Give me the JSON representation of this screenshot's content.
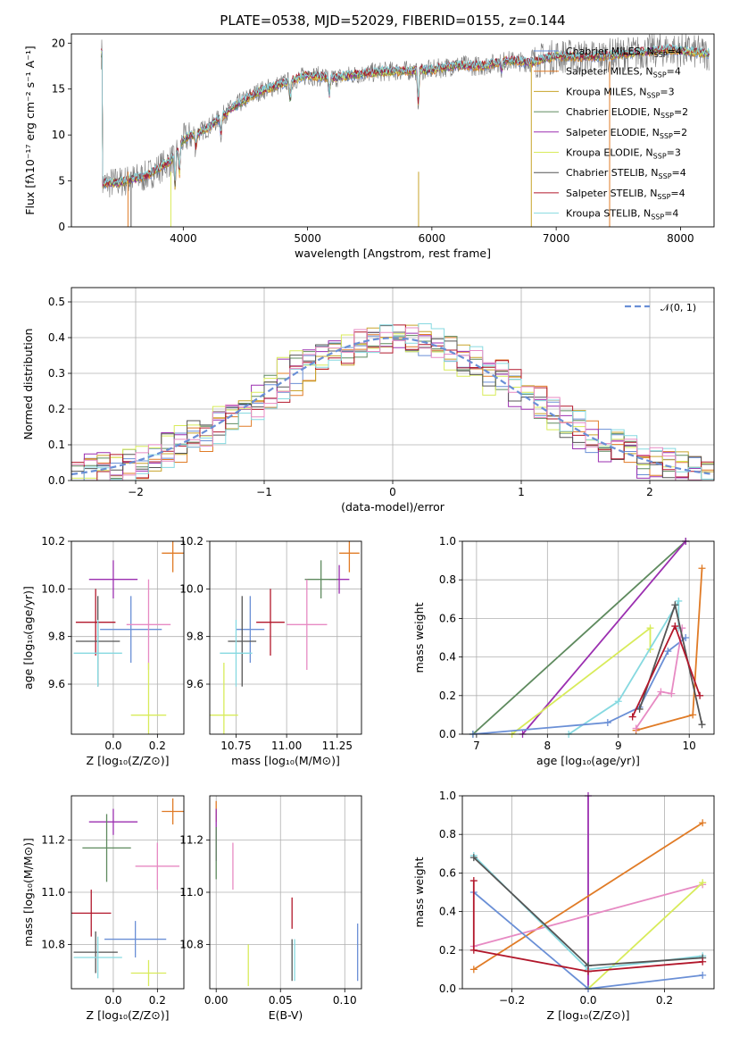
{
  "palette": {
    "chabrier_miles": "#6a8fd6",
    "salpeter_miles": "#e07b26",
    "kroupa_miles": "#c8a42a",
    "chabrier_elodie": "#5e8a5e",
    "salpeter_elodie": "#9b2fb0",
    "kroupa_elodie": "#d8eb5a",
    "chabrier_stelib": "#555555",
    "salpeter_stelib": "#b2172b",
    "kroupa_stelib": "#86d9e0",
    "pink": "#e78ac3",
    "gaussian": "#6a8fd6"
  },
  "chart_data": [
    {
      "type": "line",
      "title": "PLATE=0538, MJD=52029, FIBERID=0155, z=0.144",
      "xlabel": "wavelength [Angstrom, rest frame]",
      "ylabel": "Flux [fλ10⁻¹⁷ erg cm⁻² s⁻¹ A⁻¹]",
      "xlim": [
        3100,
        8270
      ],
      "ylim": [
        0,
        21
      ],
      "xticks": [
        "4000",
        "5000",
        "6000",
        "7000",
        "8000"
      ],
      "yticks": [
        "0",
        "5",
        "10",
        "15",
        "20"
      ],
      "spectrum_anchors": [
        [
          3350,
          4.7
        ],
        [
          3500,
          4.9
        ],
        [
          3700,
          5.5
        ],
        [
          3900,
          7.2
        ],
        [
          4000,
          9.5
        ],
        [
          4200,
          10.8
        ],
        [
          4400,
          13.0
        ],
        [
          4600,
          14.7
        ],
        [
          4800,
          15.6
        ],
        [
          5000,
          16.5
        ],
        [
          5200,
          16.2
        ],
        [
          5400,
          16.6
        ],
        [
          5600,
          16.9
        ],
        [
          5800,
          17.0
        ],
        [
          6000,
          17.1
        ],
        [
          6200,
          17.6
        ],
        [
          6400,
          17.5
        ],
        [
          6600,
          18.1
        ],
        [
          6800,
          17.9
        ],
        [
          7000,
          18.6
        ],
        [
          7300,
          18.5
        ],
        [
          7600,
          18.9
        ],
        [
          7900,
          19.3
        ],
        [
          8200,
          18.9
        ]
      ],
      "legend": [
        {
          "label": "Chabrier MILES, N",
          "sub": "SSP",
          "eq": "=4",
          "color": "#6a8fd6"
        },
        {
          "label": "Salpeter MILES, N",
          "sub": "SSP",
          "eq": "=4",
          "color": "#e07b26"
        },
        {
          "label": "Kroupa MILES, N",
          "sub": "SSP",
          "eq": "=3",
          "color": "#c8a42a"
        },
        {
          "label": "Chabrier ELODIE, N",
          "sub": "SSP",
          "eq": "=2",
          "color": "#5e8a5e"
        },
        {
          "label": "Salpeter ELODIE, N",
          "sub": "SSP",
          "eq": "=2",
          "color": "#9b2fb0"
        },
        {
          "label": "Kroupa ELODIE, N",
          "sub": "SSP",
          "eq": "=3",
          "color": "#d8eb5a"
        },
        {
          "label": "Chabrier STELIB, N",
          "sub": "SSP",
          "eq": "=4",
          "color": "#555555"
        },
        {
          "label": "Salpeter STELIB, N",
          "sub": "SSP",
          "eq": "=4",
          "color": "#b2172b"
        },
        {
          "label": "Kroupa STELIB, N",
          "sub": "SSP",
          "eq": "=4",
          "color": "#86d9e0"
        }
      ]
    },
    {
      "type": "histogram",
      "xlabel": "(data-model)/error",
      "ylabel": "Normed distribution",
      "xlim": [
        -2.5,
        2.5
      ],
      "ylim": [
        0,
        0.54
      ],
      "xticks": [
        "−2",
        "−1",
        "0",
        "1",
        "2"
      ],
      "yticks": [
        "0.0",
        "0.1",
        "0.2",
        "0.3",
        "0.4",
        "0.5"
      ],
      "bin_width": 0.1,
      "gaussian_label": "𝒩(0, 1)",
      "series_colors": [
        "#6a8fd6",
        "#e07b26",
        "#c8a42a",
        "#5e8a5e",
        "#9b2fb0",
        "#d8eb5a",
        "#555555",
        "#b2172b",
        "#86d9e0",
        "#e78ac3"
      ]
    },
    {
      "type": "errorbar",
      "xlabel": "Z [log₁₀(Z/Z⊙)]",
      "ylabel": "age  [log₁₀(age/yr)]",
      "xlim": [
        -0.19,
        0.32
      ],
      "ylim": [
        9.39,
        10.2
      ],
      "xticks": [
        "0.0",
        "0.2"
      ],
      "yticks": [
        "9.6",
        "9.8",
        "10.0",
        "10.2"
      ],
      "points": [
        {
          "x": 0.27,
          "y": 10.15,
          "ex": 0.05,
          "ey": 0.08,
          "color": "#e07b26"
        },
        {
          "x": 0.0,
          "y": 10.04,
          "ex": 0.11,
          "ey": 0.08,
          "color": "#9b2fb0"
        },
        {
          "x": 0.08,
          "y": 9.83,
          "ex": 0.14,
          "ey": 0.14,
          "color": "#6a8fd6"
        },
        {
          "x": -0.08,
          "y": 9.86,
          "ex": 0.09,
          "ey": 0.14,
          "color": "#b2172b"
        },
        {
          "x": -0.07,
          "y": 9.78,
          "ex": 0.1,
          "ey": 0.19,
          "color": "#555555"
        },
        {
          "x": -0.07,
          "y": 9.73,
          "ex": 0.11,
          "ey": 0.14,
          "color": "#86d9e0"
        },
        {
          "x": 0.16,
          "y": 9.85,
          "ex": 0.1,
          "ey": 0.19,
          "color": "#e78ac3"
        },
        {
          "x": 0.16,
          "y": 9.47,
          "ex": 0.08,
          "ey": 0.22,
          "color": "#d8eb5a"
        }
      ]
    },
    {
      "type": "errorbar",
      "xlabel": "mass [log₁₀(M/M⊙)]",
      "ylabel": "",
      "xlim": [
        10.62,
        11.37
      ],
      "ylim": [
        9.39,
        10.2
      ],
      "xticks": [
        "10.75",
        "11.00",
        "11.25"
      ],
      "yticks": [
        "9.6",
        "9.8",
        "10.0",
        "10.2"
      ],
      "points": [
        {
          "x": 11.31,
          "y": 10.15,
          "ex": 0.05,
          "ey": 0.08,
          "color": "#e07b26"
        },
        {
          "x": 11.26,
          "y": 10.04,
          "ex": 0.05,
          "ey": 0.06,
          "color": "#9b2fb0"
        },
        {
          "x": 11.17,
          "y": 10.04,
          "ex": 0.08,
          "ey": 0.08,
          "color": "#5e8a5e"
        },
        {
          "x": 11.1,
          "y": 9.85,
          "ex": 0.1,
          "ey": 0.19,
          "color": "#e78ac3"
        },
        {
          "x": 10.92,
          "y": 9.86,
          "ex": 0.07,
          "ey": 0.14,
          "color": "#b2172b"
        },
        {
          "x": 10.82,
          "y": 9.83,
          "ex": 0.07,
          "ey": 0.14,
          "color": "#6a8fd6"
        },
        {
          "x": 10.78,
          "y": 9.78,
          "ex": 0.07,
          "ey": 0.19,
          "color": "#555555"
        },
        {
          "x": 10.75,
          "y": 9.73,
          "ex": 0.08,
          "ey": 0.14,
          "color": "#86d9e0"
        },
        {
          "x": 10.69,
          "y": 9.47,
          "ex": 0.07,
          "ey": 0.22,
          "color": "#d8eb5a"
        }
      ]
    },
    {
      "type": "line",
      "xlabel": "age  [log₁₀(age/yr)]",
      "ylabel": "mass weight",
      "xlim": [
        6.8,
        10.35
      ],
      "ylim": [
        0,
        1
      ],
      "xticks": [
        "7",
        "8",
        "9",
        "10"
      ],
      "yticks": [
        "0.0",
        "0.2",
        "0.4",
        "0.6",
        "0.8",
        "1.0"
      ],
      "series": [
        {
          "color": "#5e8a5e",
          "points": [
            [
              6.95,
              0.0
            ],
            [
              9.95,
              1.0
            ]
          ]
        },
        {
          "color": "#9b2fb0",
          "points": [
            [
              7.65,
              0.0
            ],
            [
              9.95,
              1.0
            ]
          ]
        },
        {
          "color": "#d8eb5a",
          "points": [
            [
              7.5,
              0.0
            ],
            [
              9.45,
              0.55
            ],
            [
              9.45,
              0.44
            ]
          ]
        },
        {
          "color": "#86d9e0",
          "points": [
            [
              8.3,
              0.0
            ],
            [
              9.0,
              0.17
            ],
            [
              9.85,
              0.69
            ],
            [
              9.85,
              0.55
            ]
          ]
        },
        {
          "color": "#6a8fd6",
          "points": [
            [
              6.95,
              0.0
            ],
            [
              8.85,
              0.06
            ],
            [
              9.3,
              0.14
            ],
            [
              9.7,
              0.43
            ],
            [
              9.95,
              0.5
            ]
          ]
        },
        {
          "color": "#e07b26",
          "points": [
            [
              9.25,
              0.02
            ],
            [
              10.05,
              0.1
            ],
            [
              10.18,
              0.86
            ]
          ]
        },
        {
          "color": "#e78ac3",
          "points": [
            [
              9.25,
              0.03
            ],
            [
              9.6,
              0.22
            ],
            [
              9.75,
              0.21
            ],
            [
              9.9,
              0.55
            ]
          ]
        },
        {
          "color": "#555555",
          "points": [
            [
              9.3,
              0.13
            ],
            [
              9.8,
              0.67
            ],
            [
              10.18,
              0.05
            ]
          ]
        },
        {
          "color": "#b2172b",
          "points": [
            [
              9.2,
              0.09
            ],
            [
              9.8,
              0.56
            ],
            [
              10.15,
              0.2
            ]
          ]
        }
      ]
    },
    {
      "type": "errorbar",
      "xlabel": "Z [log₁₀(Z/Z⊙)]",
      "ylabel": "mass [log₁₀(M/M⊙)]",
      "xlim": [
        -0.19,
        0.32
      ],
      "ylim": [
        10.63,
        11.37
      ],
      "xticks": [
        "0.0",
        "0.2"
      ],
      "yticks": [
        "10.8",
        "11.0",
        "11.2"
      ],
      "points": [
        {
          "x": 0.27,
          "y": 11.31,
          "ex": 0.05,
          "ey": 0.05,
          "color": "#e07b26"
        },
        {
          "x": 0.0,
          "y": 11.27,
          "ex": 0.11,
          "ey": 0.05,
          "color": "#9b2fb0"
        },
        {
          "x": -0.03,
          "y": 11.17,
          "ex": 0.11,
          "ey": 0.13,
          "color": "#5e8a5e"
        },
        {
          "x": 0.2,
          "y": 11.1,
          "ex": 0.1,
          "ey": 0.09,
          "color": "#e78ac3"
        },
        {
          "x": -0.1,
          "y": 10.92,
          "ex": 0.09,
          "ey": 0.09,
          "color": "#b2172b"
        },
        {
          "x": 0.1,
          "y": 10.82,
          "ex": 0.14,
          "ey": 0.07,
          "color": "#6a8fd6"
        },
        {
          "x": -0.08,
          "y": 10.77,
          "ex": 0.1,
          "ey": 0.08,
          "color": "#555555"
        },
        {
          "x": -0.07,
          "y": 10.75,
          "ex": 0.11,
          "ey": 0.08,
          "color": "#86d9e0"
        },
        {
          "x": 0.16,
          "y": 10.69,
          "ex": 0.08,
          "ey": 0.05,
          "color": "#d8eb5a"
        }
      ]
    },
    {
      "type": "errorbar",
      "xlabel": "E(B-V)",
      "ylabel": "",
      "xlim": [
        -0.005,
        0.113
      ],
      "ylim": [
        10.63,
        11.37
      ],
      "xticks": [
        "0.00",
        "0.05",
        "0.10"
      ],
      "yticks": [
        "10.8",
        "11.0",
        "11.2"
      ],
      "points": [
        {
          "x": 0.0,
          "y": 11.31,
          "ex": 0,
          "ey": 0.04,
          "color": "#e07b26"
        },
        {
          "x": 0.0,
          "y": 11.22,
          "ex": 0,
          "ey": 0.1,
          "color": "#9b2fb0"
        },
        {
          "x": 0.0,
          "y": 11.15,
          "ex": 0,
          "ey": 0.1,
          "color": "#5e8a5e"
        },
        {
          "x": 0.013,
          "y": 11.1,
          "ex": 0,
          "ey": 0.09,
          "color": "#e78ac3"
        },
        {
          "x": 0.059,
          "y": 10.92,
          "ex": 0,
          "ey": 0.06,
          "color": "#b2172b"
        },
        {
          "x": 0.11,
          "y": 10.77,
          "ex": 0,
          "ey": 0.11,
          "color": "#6a8fd6"
        },
        {
          "x": 0.059,
          "y": 10.74,
          "ex": 0,
          "ey": 0.08,
          "color": "#555555"
        },
        {
          "x": 0.061,
          "y": 10.74,
          "ex": 0,
          "ey": 0.08,
          "color": "#86d9e0"
        },
        {
          "x": 0.025,
          "y": 10.72,
          "ex": 0,
          "ey": 0.08,
          "color": "#d8eb5a"
        }
      ]
    },
    {
      "type": "line",
      "xlabel": "Z [log₁₀(Z/Z⊙)]",
      "ylabel": "mass weight",
      "xlim": [
        -0.33,
        0.33
      ],
      "ylim": [
        0,
        1
      ],
      "xticks": [
        "−0.2",
        "0.0",
        "0.2"
      ],
      "yticks": [
        "0.0",
        "0.2",
        "0.4",
        "0.6",
        "0.8",
        "1.0"
      ],
      "series": [
        {
          "color": "#9b2fb0",
          "points": [
            [
              0.0,
              0.0
            ],
            [
              0.0,
              1.0
            ]
          ]
        },
        {
          "color": "#e07b26",
          "points": [
            [
              -0.3,
              0.1
            ],
            [
              0.3,
              0.86
            ]
          ]
        },
        {
          "color": "#e78ac3",
          "points": [
            [
              -0.3,
              0.22
            ],
            [
              0.3,
              0.54
            ]
          ]
        },
        {
          "color": "#d8eb5a",
          "points": [
            [
              0.0,
              0.0
            ],
            [
              0.3,
              0.55
            ]
          ]
        },
        {
          "color": "#86d9e0",
          "points": [
            [
              -0.3,
              0.69
            ],
            [
              0.0,
              0.1
            ],
            [
              0.3,
              0.17
            ]
          ]
        },
        {
          "color": "#555555",
          "points": [
            [
              -0.3,
              0.68
            ],
            [
              0.0,
              0.12
            ],
            [
              0.3,
              0.16
            ]
          ]
        },
        {
          "color": "#6a8fd6",
          "points": [
            [
              -0.3,
              0.5
            ],
            [
              0.0,
              0.0
            ],
            [
              0.3,
              0.07
            ]
          ]
        },
        {
          "color": "#b2172b",
          "points": [
            [
              -0.3,
              0.56
            ],
            [
              -0.3,
              0.2
            ],
            [
              0.0,
              0.09
            ],
            [
              0.3,
              0.14
            ]
          ]
        }
      ]
    }
  ]
}
